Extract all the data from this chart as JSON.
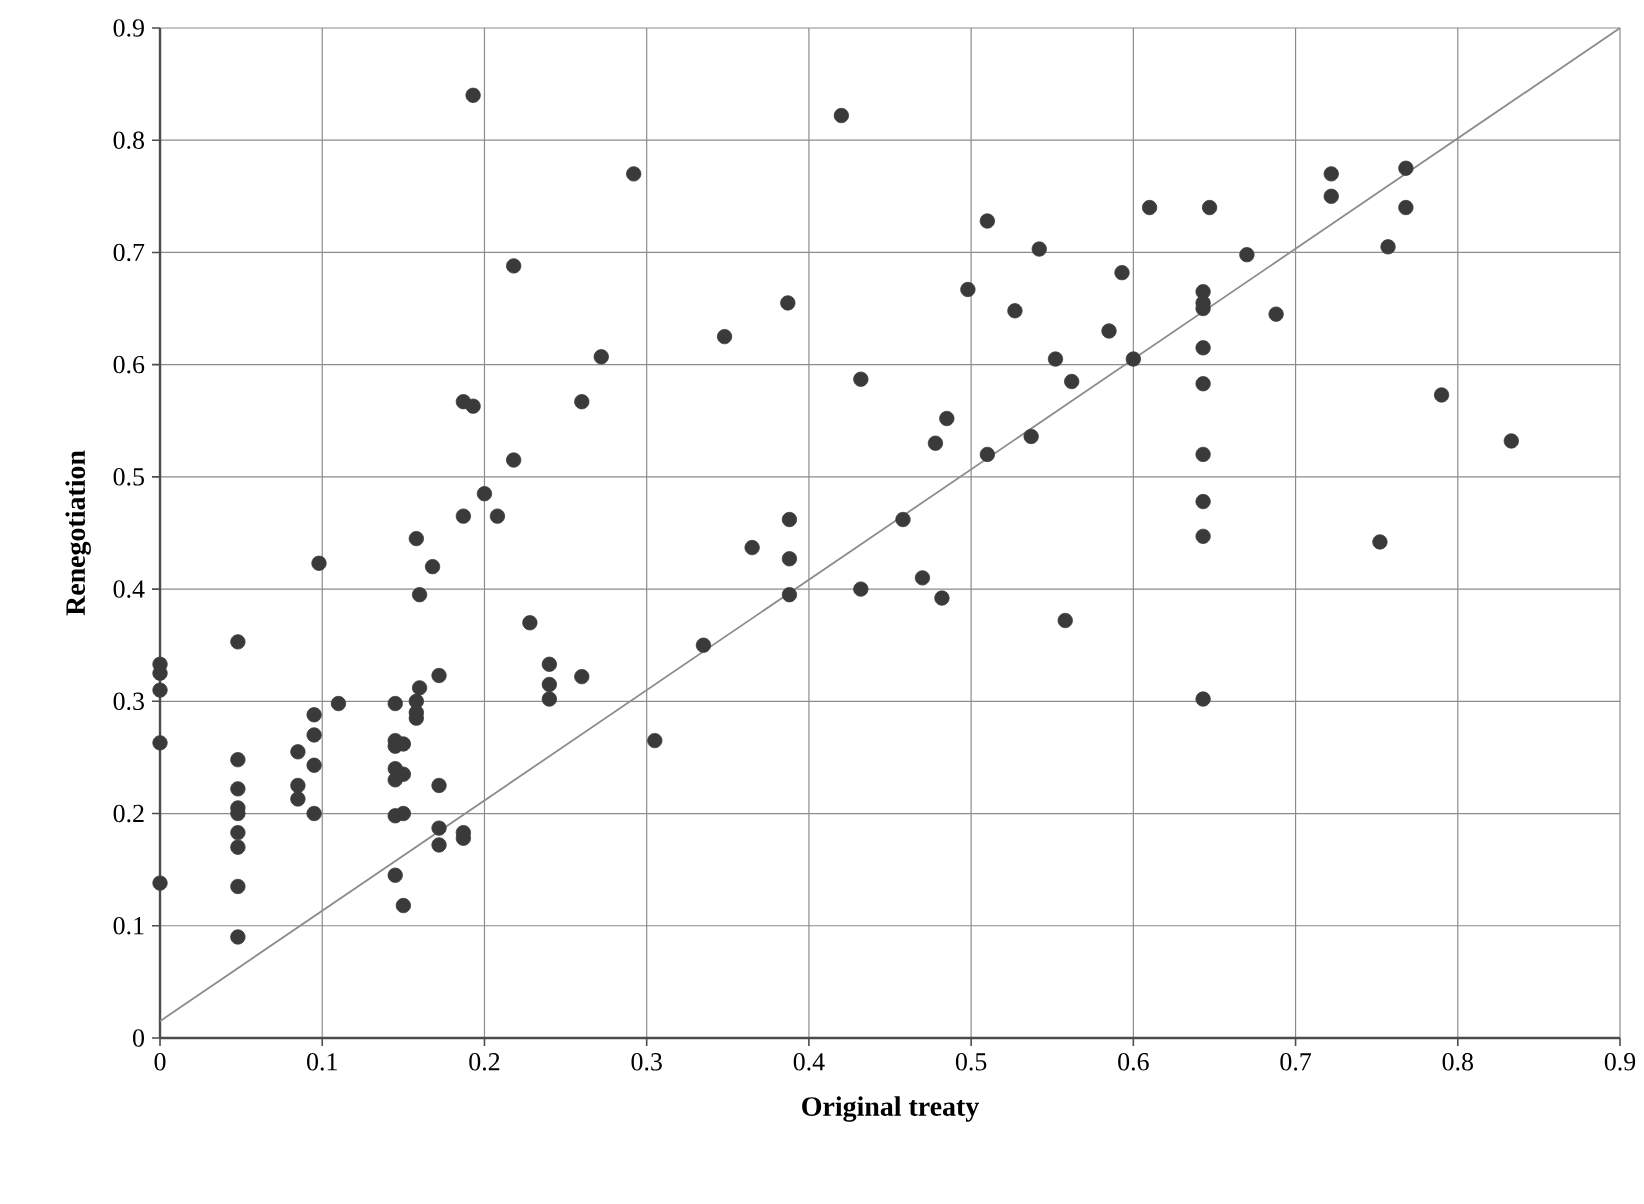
{
  "chart_data": {
    "type": "scatter",
    "xlabel": "Original treaty",
    "ylabel": "Renegotiation",
    "xlim": [
      0,
      0.9
    ],
    "ylim": [
      0,
      0.9
    ],
    "xticks": [
      0,
      0.1,
      0.2,
      0.3,
      0.4,
      0.5,
      0.6,
      0.7,
      0.8,
      0.9
    ],
    "yticks": [
      0,
      0.1,
      0.2,
      0.3,
      0.4,
      0.5,
      0.6,
      0.7,
      0.8,
      0.9
    ],
    "grid": true,
    "series": [
      {
        "color": "#3a3a3a",
        "marker": "circle",
        "x": [
          0,
          0,
          0,
          0,
          0,
          0.048,
          0.048,
          0.048,
          0.048,
          0.048,
          0.048,
          0.048,
          0.048,
          0.048,
          0.085,
          0.085,
          0.085,
          0.095,
          0.095,
          0.095,
          0.095,
          0.098,
          0.11,
          0.145,
          0.145,
          0.145,
          0.145,
          0.145,
          0.145,
          0.145,
          0.15,
          0.15,
          0.15,
          0.15,
          0.158,
          0.158,
          0.158,
          0.158,
          0.16,
          0.16,
          0.168,
          0.172,
          0.172,
          0.172,
          0.172,
          0.187,
          0.187,
          0.187,
          0.187,
          0.193,
          0.193,
          0.2,
          0.208,
          0.218,
          0.218,
          0.228,
          0.24,
          0.24,
          0.24,
          0.26,
          0.26,
          0.272,
          0.292,
          0.305,
          0.335,
          0.348,
          0.365,
          0.387,
          0.388,
          0.388,
          0.388,
          0.42,
          0.432,
          0.432,
          0.458,
          0.47,
          0.478,
          0.482,
          0.485,
          0.498,
          0.51,
          0.51,
          0.527,
          0.537,
          0.542,
          0.552,
          0.558,
          0.562,
          0.585,
          0.593,
          0.6,
          0.61,
          0.643,
          0.643,
          0.643,
          0.643,
          0.643,
          0.643,
          0.643,
          0.643,
          0.643,
          0.647,
          0.67,
          0.688,
          0.722,
          0.722,
          0.752,
          0.757,
          0.768,
          0.768,
          0.79,
          0.833
        ],
        "values": [
          0.333,
          0.325,
          0.31,
          0.263,
          0.138,
          0.353,
          0.248,
          0.222,
          0.205,
          0.2,
          0.183,
          0.17,
          0.135,
          0.09,
          0.255,
          0.225,
          0.213,
          0.288,
          0.27,
          0.243,
          0.2,
          0.423,
          0.298,
          0.298,
          0.265,
          0.26,
          0.24,
          0.23,
          0.198,
          0.145,
          0.262,
          0.235,
          0.2,
          0.118,
          0.445,
          0.3,
          0.29,
          0.285,
          0.312,
          0.395,
          0.42,
          0.323,
          0.225,
          0.187,
          0.172,
          0.567,
          0.465,
          0.183,
          0.178,
          0.563,
          0.84,
          0.485,
          0.465,
          0.515,
          0.688,
          0.37,
          0.333,
          0.315,
          0.302,
          0.567,
          0.322,
          0.607,
          0.77,
          0.265,
          0.35,
          0.625,
          0.437,
          0.655,
          0.462,
          0.427,
          0.395,
          0.822,
          0.587,
          0.4,
          0.462,
          0.41,
          0.53,
          0.392,
          0.552,
          0.667,
          0.728,
          0.52,
          0.648,
          0.536,
          0.703,
          0.605,
          0.372,
          0.585,
          0.63,
          0.682,
          0.605,
          0.74,
          0.665,
          0.655,
          0.65,
          0.615,
          0.583,
          0.52,
          0.478,
          0.447,
          0.302,
          0.74,
          0.698,
          0.645,
          0.77,
          0.75,
          0.442,
          0.705,
          0.74,
          0.775,
          0.573,
          0.532
        ]
      },
      {
        "type": "line",
        "marker": "none",
        "color": "#8c8c8c",
        "x": [
          0,
          0.9
        ],
        "values": [
          0.015,
          0.9
        ]
      }
    ]
  }
}
